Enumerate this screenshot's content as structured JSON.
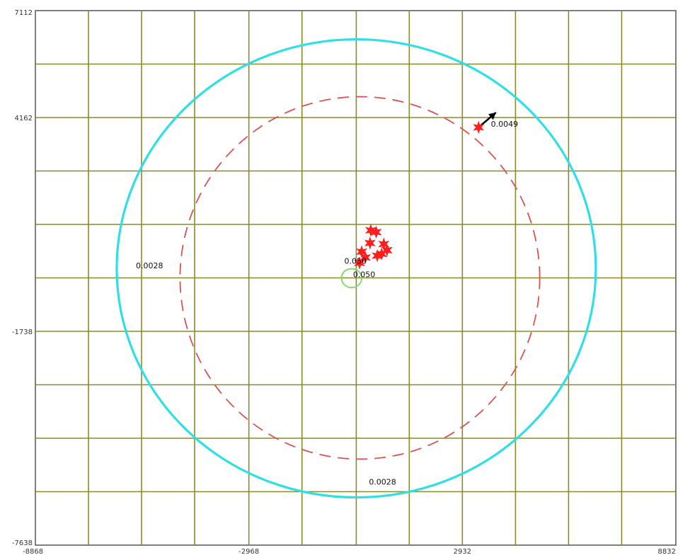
{
  "chart_data": {
    "type": "contour",
    "title": "",
    "xlabel": "",
    "ylabel": "",
    "xlim": [
      -8868,
      8832
    ],
    "ylim": [
      -7638,
      7112
    ],
    "grid": true,
    "x_tick_labels": [
      {
        "value": -8868,
        "label": "-8868"
      },
      {
        "value": -2968,
        "label": "-2968"
      },
      {
        "value": 2932,
        "label": "2932"
      },
      {
        "value": 8832,
        "label": "8832"
      }
    ],
    "y_tick_labels": [
      {
        "value": 7112,
        "label": "7112"
      },
      {
        "value": 4162,
        "label": "4162"
      },
      {
        "value": -1738,
        "label": "-1738"
      },
      {
        "value": -7638,
        "label": "-7638"
      }
    ],
    "x_grid": [
      -7401,
      -5934,
      -4467,
      -2968,
      -1500,
      0,
      1465,
      2932,
      4400,
      5867,
      7335
    ],
    "y_grid": [
      5637,
      4162,
      2687,
      1212,
      -263,
      -1738,
      -3213,
      -4688,
      -6163
    ],
    "series": [
      {
        "kind": "contour",
        "label": "0.0028",
        "color": "#2ee0e6",
        "style": "solid",
        "center": [
          0,
          0
        ],
        "rx": 6620,
        "ry": 6320
      },
      {
        "kind": "circle",
        "color": "#d9534f",
        "style": "dashed",
        "center": [
          100,
          -263
        ],
        "rx": 4970,
        "ry": 5000
      },
      {
        "kind": "contour",
        "label": "0.050",
        "color": "#7ed957",
        "style": "solid",
        "center": [
          -130,
          -270
        ],
        "rx": 280,
        "ry": 260
      }
    ],
    "points": [
      {
        "x": 400,
        "y": 1050,
        "color": "#ff1e1e"
      },
      {
        "x": 550,
        "y": 1000,
        "color": "#ff1e1e"
      },
      {
        "x": 380,
        "y": 700,
        "color": "#ff1e1e"
      },
      {
        "x": 760,
        "y": 670,
        "color": "#ff1e1e"
      },
      {
        "x": 850,
        "y": 500,
        "color": "#ff1e1e"
      },
      {
        "x": 700,
        "y": 400,
        "color": "#ff1e1e"
      },
      {
        "x": 580,
        "y": 350,
        "color": "#ff1e1e"
      },
      {
        "x": 150,
        "y": 460,
        "color": "#ff1e1e"
      },
      {
        "x": 250,
        "y": 300,
        "color": "#ff1e1e"
      },
      {
        "x": 90,
        "y": 150,
        "color": "#ff1e1e"
      },
      {
        "x": 3380,
        "y": 3890,
        "color": "#ff1e1e"
      }
    ],
    "arrows": [
      {
        "from": [
          3380,
          3890
        ],
        "to": [
          3860,
          4300
        ],
        "color": "#000000"
      }
    ],
    "annotations": [
      {
        "text": "0.0049",
        "x": 3720,
        "y": 3910
      },
      {
        "text": "0.0028",
        "x": -6090,
        "y": 0
      },
      {
        "text": "0.050",
        "x": -330,
        "y": 130
      },
      {
        "text": "0.050",
        "x": -90,
        "y": -240
      },
      {
        "text": "0.0028",
        "x": 350,
        "y": -5970
      }
    ]
  }
}
